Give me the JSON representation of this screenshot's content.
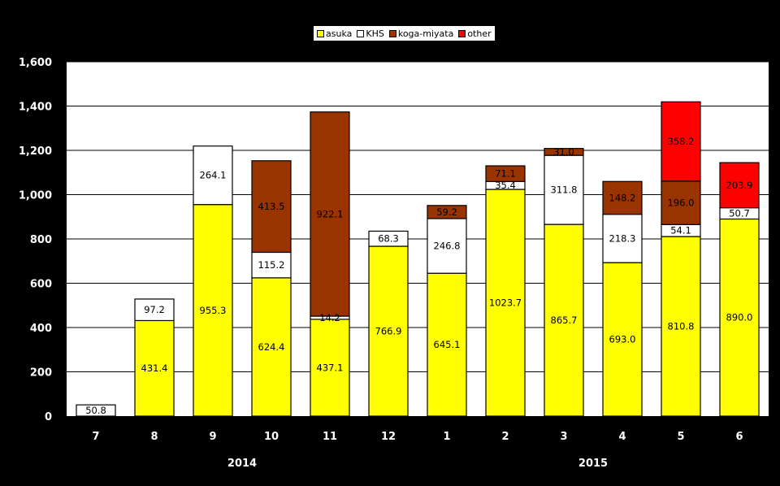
{
  "chart_data": {
    "type": "bar",
    "stacked": true,
    "categories": [
      "7",
      "8",
      "9",
      "10",
      "11",
      "12",
      "1",
      "2",
      "3",
      "4",
      "5",
      "6"
    ],
    "year_groups": [
      {
        "label": "2014",
        "months": [
          "7",
          "8",
          "9",
          "10",
          "11",
          "12"
        ]
      },
      {
        "label": "2015",
        "months": [
          "1",
          "2",
          "3",
          "4",
          "5",
          "6"
        ]
      }
    ],
    "series": [
      {
        "name": "asuka",
        "color": "#ffff00",
        "values": [
          0,
          431.4,
          955.3,
          624.4,
          437.1,
          766.9,
          645.1,
          1023.7,
          865.7,
          693.0,
          810.8,
          890.0
        ]
      },
      {
        "name": "KHS",
        "color": "#ffffff",
        "values": [
          50.8,
          97.2,
          264.1,
          115.2,
          14.2,
          68.3,
          246.8,
          35.4,
          311.8,
          218.3,
          54.1,
          50.7
        ]
      },
      {
        "name": "koga-miyata",
        "color": "#993300",
        "values": [
          0,
          0,
          0,
          413.5,
          922.1,
          0,
          59.2,
          71.1,
          31.0,
          148.2,
          196.0,
          0
        ]
      },
      {
        "name": "other",
        "color": "#ff0000",
        "values": [
          0,
          0,
          0,
          0,
          0,
          0,
          0,
          0,
          0,
          0,
          358.2,
          203.9
        ]
      }
    ],
    "value_labels": [
      [
        "",
        "431.4",
        "955.3",
        "624.4",
        "437.1",
        "766.9",
        "645.1",
        "1023.7",
        "865.7",
        "693.0",
        "810.8",
        "890.0"
      ],
      [
        "50.8",
        "97.2",
        "264.1",
        "115.2",
        "14.2",
        "68.3",
        "246.8",
        "35.4",
        "311.8",
        "218.3",
        "54.1",
        "50.7"
      ],
      [
        "",
        "",
        "",
        "413.5",
        "922.1",
        "",
        "59.2",
        "71.1",
        "31.0",
        "148.2",
        "196.0",
        ""
      ],
      [
        "",
        "",
        "",
        "",
        "",
        "",
        "",
        "",
        "",
        "",
        "358.2",
        "203.9"
      ]
    ],
    "ylim": [
      0,
      1600
    ],
    "yticks": [
      0,
      200,
      400,
      600,
      800,
      1000,
      1200,
      1400,
      1600
    ],
    "ytick_labels": [
      "0",
      "200",
      "400",
      "600",
      "800",
      "1,000",
      "1,200",
      "1,400",
      "1,600"
    ],
    "grid": true,
    "legend_position": "top-center",
    "plot_background": "#ffffff",
    "background": "#000000"
  }
}
